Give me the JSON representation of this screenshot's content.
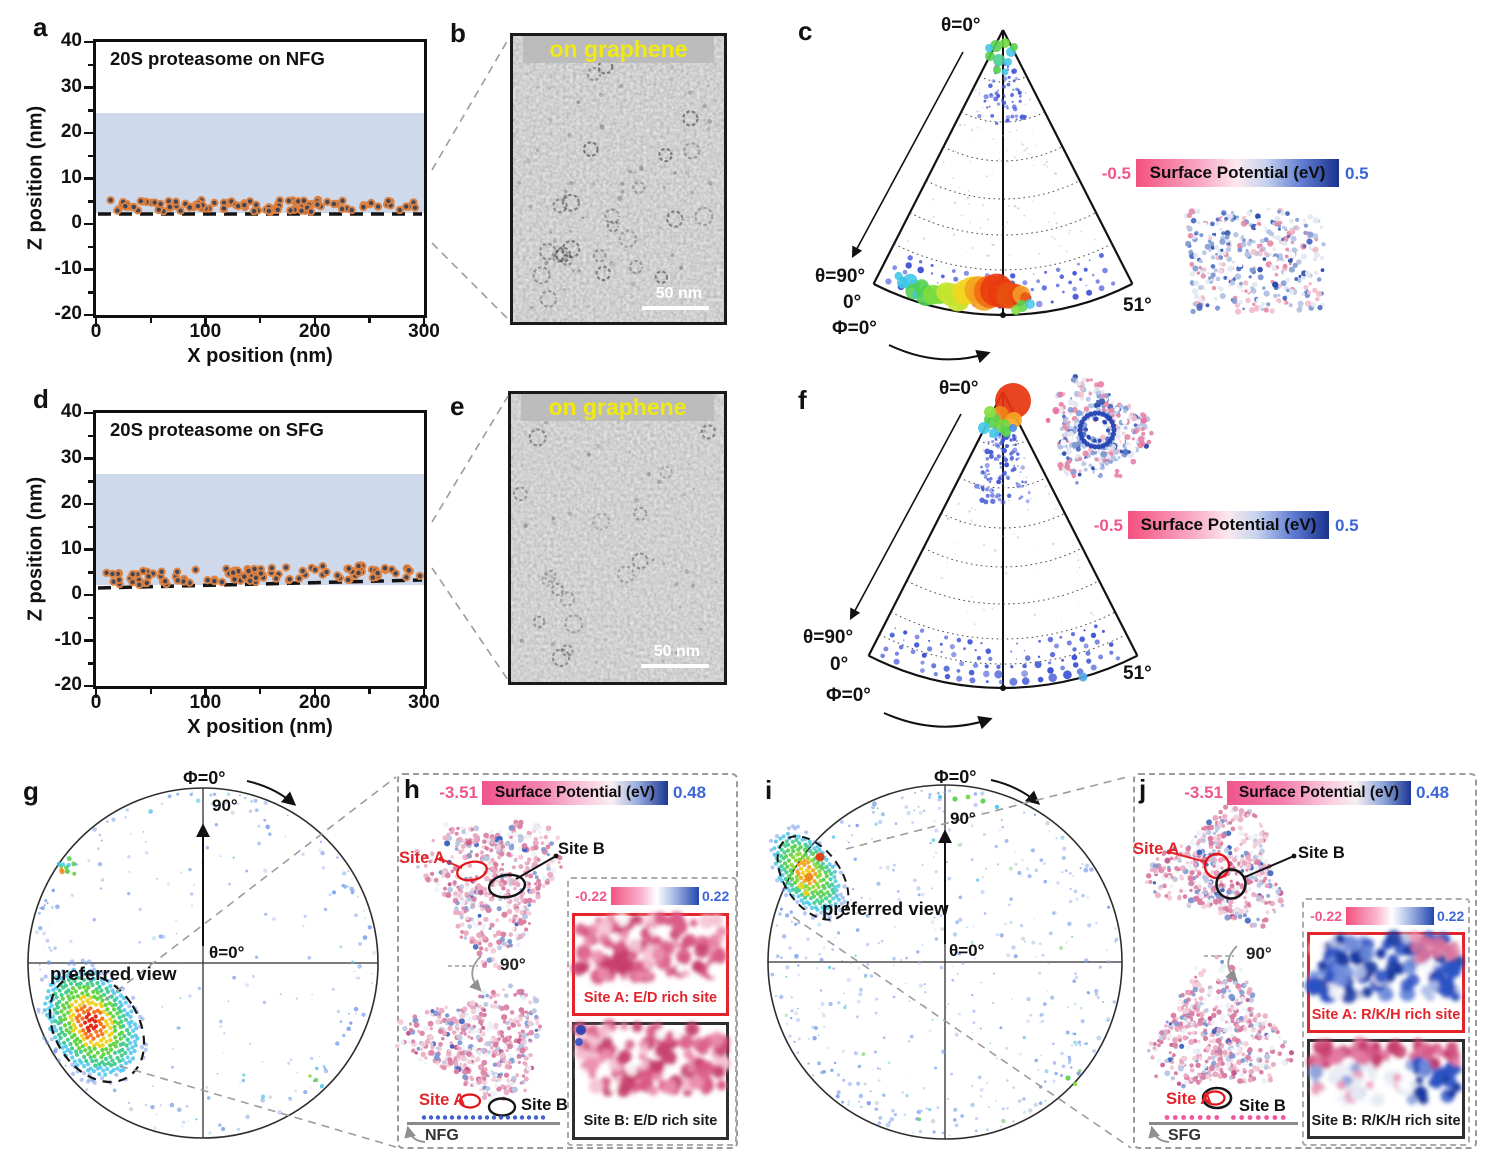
{
  "colors": {
    "shaded_band": "#cfd9ec",
    "particle_fill": "#3a4356",
    "particle_outline": "#df8140",
    "orientation_dot_blue": "#4054d6",
    "hotspot_scale": [
      "#e01e10",
      "#f56f16",
      "#f0d01e",
      "#5cd43c",
      "#3fc0e8",
      "#6b8fe8"
    ],
    "colorbar_pink": "#f2558e",
    "colorbar_navy": "#1b3693",
    "em_overlay_yellow": "#f0ea12",
    "substrate_dots_nfg": "#3857c8",
    "substrate_dots_sfg": "#ec4f9b"
  },
  "panel_a": {
    "letter": "a",
    "title": "20S proteasome on NFG",
    "xlabel": "X position (nm)",
    "ylabel": "Z position (nm)"
  },
  "panel_b": {
    "letter": "b",
    "overlay": "on graphene",
    "scalebar": "50 nm"
  },
  "panel_c": {
    "letter": "c",
    "theta0": "θ=0°",
    "theta90": "θ=90°",
    "zero": "0°",
    "phi0": "Φ=0°",
    "phimax": "51°",
    "cb_min": "-0.5",
    "cb_label": "Surface Potential (eV)",
    "cb_max": "0.5"
  },
  "panel_d": {
    "letter": "d",
    "title": "20S proteasome on SFG",
    "xlabel": "X position (nm)",
    "ylabel": "Z position (nm)"
  },
  "panel_e": {
    "letter": "e",
    "overlay": "on graphene",
    "scalebar": "50 nm"
  },
  "panel_f": {
    "letter": "f",
    "theta0": "θ=0°",
    "theta90": "θ=90°",
    "zero": "0°",
    "phi0": "Φ=0°",
    "phimax": "51°",
    "cb_min": "-0.5",
    "cb_label": "Surface Potential (eV)",
    "cb_max": "0.5"
  },
  "panel_g": {
    "letter": "g",
    "phi0": "Φ=0°",
    "ninety": "90°",
    "theta0": "θ=0°",
    "preferred": "preferred view"
  },
  "panel_h": {
    "letter": "h",
    "cb_min": "-3.51",
    "cb_label": "Surface Potential (eV)",
    "cb_max": "0.48",
    "site_a": "Site A",
    "site_b": "Site B",
    "rot": "90°",
    "substrate": "NFG",
    "inset_min": "-0.22",
    "inset_max": "0.22",
    "cap_a": "Site A: E/D rich site",
    "cap_b": "Site B: E/D rich site"
  },
  "panel_i": {
    "letter": "i",
    "phi0": "Φ=0°",
    "ninety": "90°",
    "theta0": "θ=0°",
    "preferred": "preferred view"
  },
  "panel_j": {
    "letter": "j",
    "cb_min": "-3.51",
    "cb_label": "Surface Potential (eV)",
    "cb_max": "0.48",
    "site_a": "Site A",
    "site_b": "Site B",
    "rot": "90°",
    "substrate": "SFG",
    "inset_min": "-0.22",
    "inset_max": "0.22",
    "cap_a": "Site A: R/K/H rich site",
    "cap_b": "Site B: R/K/H rich site"
  },
  "chart_data": [
    {
      "id": "a",
      "type": "scatter",
      "title": "20S proteasome on NFG",
      "xlabel": "X position (nm)",
      "ylabel": "Z position (nm)",
      "xlim": [
        0,
        300
      ],
      "ylim": [
        -20,
        40
      ],
      "x_ticks": [
        0,
        100,
        200,
        300
      ],
      "y_ticks": [
        40,
        30,
        20,
        10,
        0,
        -10,
        -20
      ],
      "shaded_band_z_nm": [
        2.5,
        24.3
      ],
      "graphene_baseline_z_nm": [
        2.2,
        2.2
      ],
      "particles": {
        "count": 115,
        "x_nm_range": [
          12,
          298
        ],
        "z_nm_range": [
          2.7,
          5.3
        ],
        "description": "20S proteasome particles adsorbed flat on NFG, all at z ≈ 3–5 nm (dark markers with orange outline)"
      }
    },
    {
      "id": "d",
      "type": "scatter",
      "title": "20S proteasome on SFG",
      "xlabel": "X position (nm)",
      "ylabel": "Z position (nm)",
      "xlim": [
        0,
        300
      ],
      "ylim": [
        -20,
        40
      ],
      "x_ticks": [
        0,
        100,
        200,
        300
      ],
      "y_ticks": [
        40,
        30,
        20,
        10,
        0,
        -10,
        -20
      ],
      "shaded_band_z_nm": [
        2.1,
        26.6
      ],
      "graphene_baseline_z_nm": [
        1.3,
        3.2
      ],
      "particles": {
        "count": 115,
        "x_nm_range": [
          8,
          298
        ],
        "z_nm_range": [
          2.8,
          6.0
        ],
        "description": "20S proteasome particles adsorbed on SFG at z ≈ 3–6 nm along a slightly tilted graphene baseline"
      }
    },
    {
      "id": "c",
      "type": "angular_distribution_fan",
      "theta_axis": [
        "0°",
        "90°"
      ],
      "phi_axis": [
        "0°",
        "51°"
      ],
      "hotspot": "large red/orange/yellow/green cluster at θ≈90°, Φ≈0–20° (side-view orientations)",
      "secondary": "small green/cyan cluster at θ≈0° apex",
      "background": "small blue frequency dots concentrated in the θ≈90° rows, faint gray dots elsewhere",
      "colorbar": {
        "min": -0.5,
        "max": 0.5,
        "label": "Surface Potential (eV)"
      }
    },
    {
      "id": "f",
      "type": "angular_distribution_fan",
      "theta_axis": [
        "0°",
        "90°"
      ],
      "phi_axis": [
        "0°",
        "51°"
      ],
      "hotspot": "large red/orange/green cluster at θ≈0° apex (top-view orientations)",
      "secondary": "blue dots spread along all θ≈90° rows, one light-blue accent near bottom center",
      "background": "sparse faint dots at intermediate θ",
      "colorbar": {
        "min": -0.5,
        "max": 0.5,
        "label": "Surface Potential (eV)"
      }
    },
    {
      "id": "g",
      "type": "polar_orientation_map",
      "hotspot": "preferred-view cluster (red core, orange/yellow/green/cyan halo) in lower-left quadrant, circled with dashed ellipse",
      "secondary": "small green/orange spot at upper-left rim; faint green dots at lower-right rim",
      "background": "sparse faint blue dots, slightly denser near the rim"
    },
    {
      "id": "i",
      "type": "polar_orientation_map",
      "hotspot": "preferred-view cluster (red/orange/yellow/green) at upper-left near rim, circled with dashed ellipse",
      "secondary": "green/cyan dots trailing along top rim; green pair at lower-right",
      "background": "many small blue dots scattered over the whole disk"
    }
  ]
}
